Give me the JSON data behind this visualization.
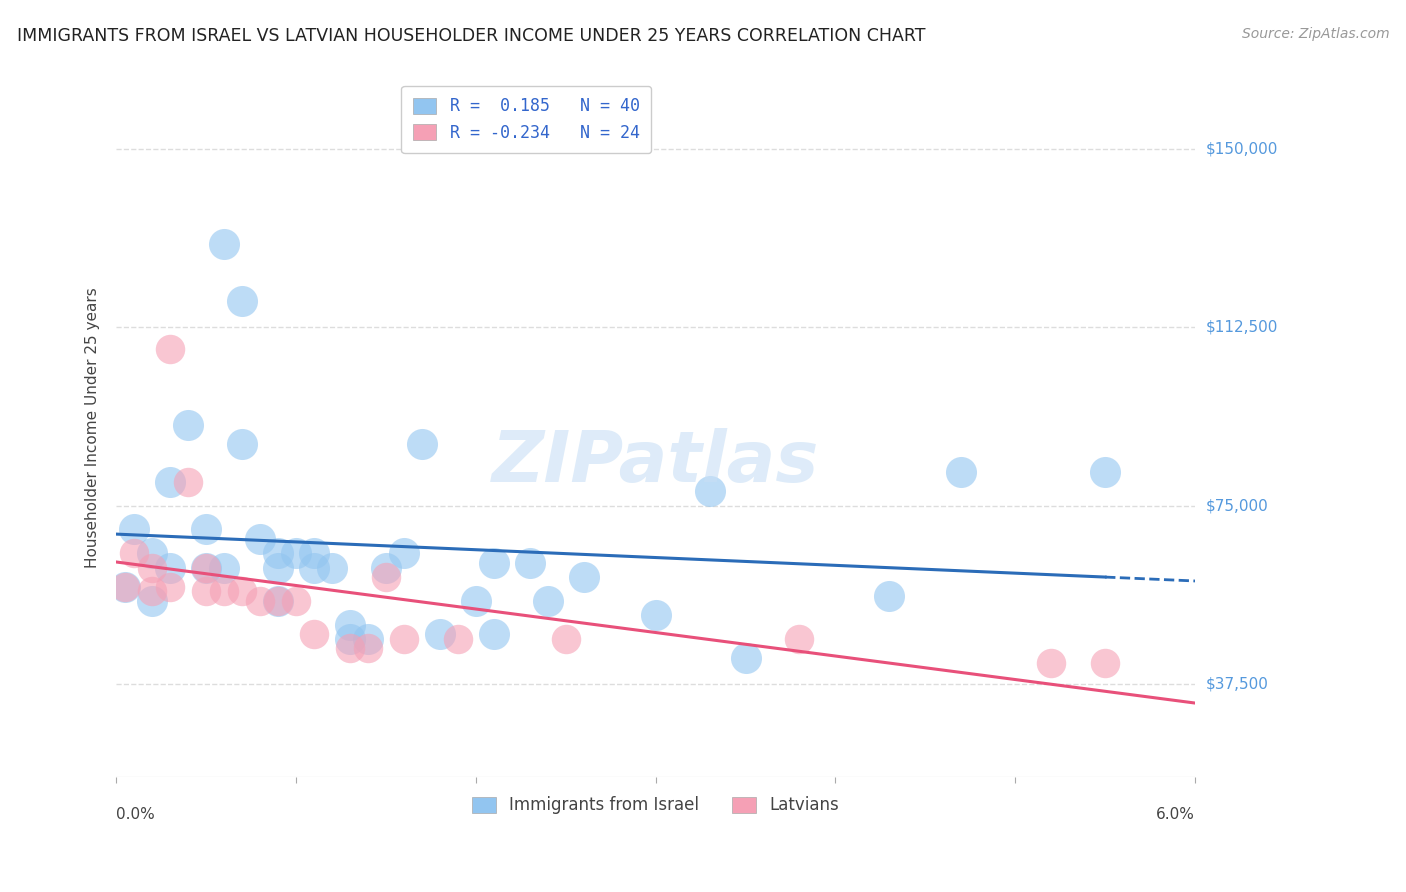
{
  "title": "IMMIGRANTS FROM ISRAEL VS LATVIAN HOUSEHOLDER INCOME UNDER 25 YEARS CORRELATION CHART",
  "source": "Source: ZipAtlas.com",
  "ylabel": "Householder Income Under 25 years",
  "ytick_labels": [
    "$37,500",
    "$75,000",
    "$112,500",
    "$150,000"
  ],
  "ytick_values": [
    37500,
    75000,
    112500,
    150000
  ],
  "legend_entry1": "Immigrants from Israel",
  "legend_entry2": "Latvians",
  "xmin": 0.0,
  "xmax": 0.06,
  "ymin": 18000,
  "ymax": 165000,
  "blue_color": "#92C5F0",
  "pink_color": "#F5A0B5",
  "blue_line_color": "#2B6CB8",
  "pink_line_color": "#E8507A",
  "blue_scatter": [
    [
      0.0005,
      58000
    ],
    [
      0.001,
      70000
    ],
    [
      0.002,
      65000
    ],
    [
      0.002,
      55000
    ],
    [
      0.003,
      80000
    ],
    [
      0.003,
      62000
    ],
    [
      0.004,
      92000
    ],
    [
      0.005,
      70000
    ],
    [
      0.005,
      62000
    ],
    [
      0.006,
      130000
    ],
    [
      0.006,
      62000
    ],
    [
      0.007,
      118000
    ],
    [
      0.007,
      88000
    ],
    [
      0.008,
      68000
    ],
    [
      0.009,
      65000
    ],
    [
      0.009,
      62000
    ],
    [
      0.009,
      55000
    ],
    [
      0.01,
      65000
    ],
    [
      0.011,
      65000
    ],
    [
      0.011,
      62000
    ],
    [
      0.012,
      62000
    ],
    [
      0.013,
      50000
    ],
    [
      0.013,
      47000
    ],
    [
      0.014,
      47000
    ],
    [
      0.015,
      62000
    ],
    [
      0.016,
      65000
    ],
    [
      0.017,
      88000
    ],
    [
      0.018,
      48000
    ],
    [
      0.02,
      55000
    ],
    [
      0.021,
      63000
    ],
    [
      0.021,
      48000
    ],
    [
      0.023,
      63000
    ],
    [
      0.024,
      55000
    ],
    [
      0.026,
      60000
    ],
    [
      0.03,
      52000
    ],
    [
      0.033,
      78000
    ],
    [
      0.035,
      43000
    ],
    [
      0.043,
      56000
    ],
    [
      0.047,
      82000
    ],
    [
      0.055,
      82000
    ]
  ],
  "pink_scatter": [
    [
      0.0005,
      58000
    ],
    [
      0.001,
      65000
    ],
    [
      0.002,
      62000
    ],
    [
      0.002,
      57000
    ],
    [
      0.003,
      108000
    ],
    [
      0.003,
      58000
    ],
    [
      0.004,
      80000
    ],
    [
      0.005,
      62000
    ],
    [
      0.005,
      57000
    ],
    [
      0.006,
      57000
    ],
    [
      0.007,
      57000
    ],
    [
      0.008,
      55000
    ],
    [
      0.009,
      55000
    ],
    [
      0.01,
      55000
    ],
    [
      0.011,
      48000
    ],
    [
      0.013,
      45000
    ],
    [
      0.014,
      45000
    ],
    [
      0.015,
      60000
    ],
    [
      0.016,
      47000
    ],
    [
      0.019,
      47000
    ],
    [
      0.025,
      47000
    ],
    [
      0.038,
      47000
    ],
    [
      0.052,
      42000
    ],
    [
      0.055,
      42000
    ]
  ],
  "watermark_text": "ZIPatlas",
  "watermark_color": "#C8DFF5",
  "grid_color": "#DDDDDD",
  "background": "#FFFFFF",
  "r_blue": "0.185",
  "n_blue": "40",
  "r_pink": "-0.234",
  "n_pink": "24"
}
